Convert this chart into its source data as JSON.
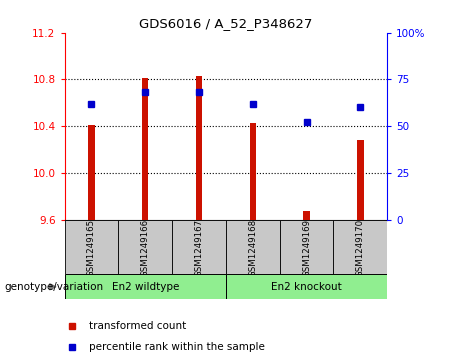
{
  "title": "GDS6016 / A_52_P348627",
  "samples": [
    "GSM1249165",
    "GSM1249166",
    "GSM1249167",
    "GSM1249168",
    "GSM1249169",
    "GSM1249170"
  ],
  "transformed_count": [
    10.41,
    10.81,
    10.83,
    10.43,
    9.67,
    10.28
  ],
  "percentile_rank": [
    62,
    68,
    68,
    62,
    52,
    60
  ],
  "ylim_left": [
    9.6,
    11.2
  ],
  "ylim_right": [
    0,
    100
  ],
  "yticks_left": [
    9.6,
    10.0,
    10.4,
    10.8,
    11.2
  ],
  "yticks_right": [
    0,
    25,
    50,
    75,
    100
  ],
  "ytick_labels_right": [
    "0",
    "25",
    "50",
    "75",
    "100%"
  ],
  "bar_color": "#cc1100",
  "dot_color": "#0000cc",
  "bar_bottom": 9.6,
  "group1_label": "En2 wildtype",
  "group2_label": "En2 knockout",
  "group1_indices": [
    0,
    1,
    2
  ],
  "group2_indices": [
    3,
    4,
    5
  ],
  "group1_color": "#90ee90",
  "group2_color": "#90ee90",
  "genotype_label": "genotype/variation",
  "legend_red": "transformed count",
  "legend_blue": "percentile rank within the sample",
  "bar_width": 0.12,
  "background_color": "#ffffff",
  "tick_area_color": "#c8c8c8",
  "grid_linestyle": "dotted"
}
